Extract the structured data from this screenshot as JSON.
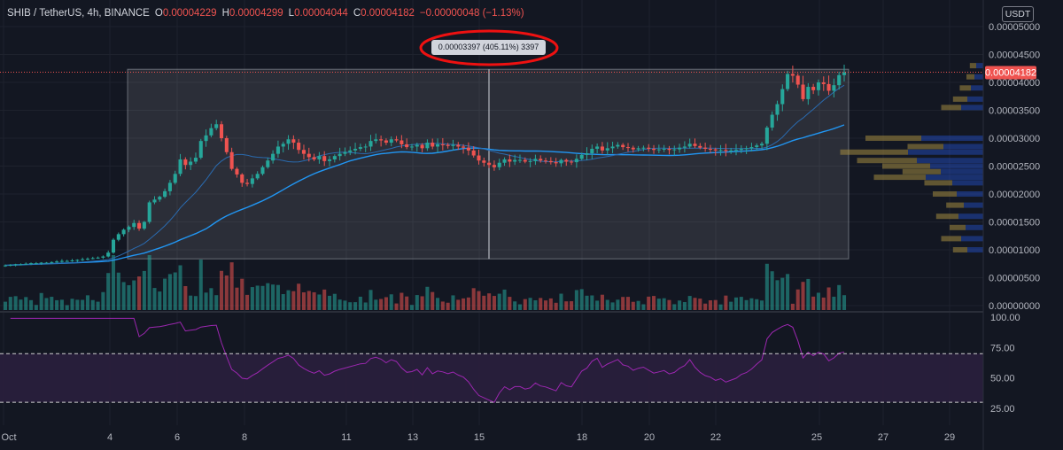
{
  "header": {
    "symbol": "SHIB / TetherUS, 4h, BINANCE",
    "o_label": "O",
    "o": "0.00004229",
    "h_label": "H",
    "h": "0.00004299",
    "l_label": "L",
    "l": "0.00004044",
    "c_label": "C",
    "c": "0.00004182",
    "change": "−0.00000048 (−1.13%)"
  },
  "currency_button": "USDT",
  "measure_label": "0.00003397 (405.11%) 3397",
  "last_price_label": "0.00004182",
  "colors": {
    "up": "#26a69a",
    "down": "#ef5350",
    "ma_fast": "#2a6bb0",
    "ma_slow": "#2196f3",
    "rsi": "#9c27b0",
    "annotation": "#ee1111"
  },
  "chart_data": {
    "type": "candlestick",
    "title": "",
    "xlabel": "",
    "ylabel": "",
    "x_ticks": [
      "Oct",
      "4",
      "6",
      "8",
      "11",
      "13",
      "15",
      "18",
      "20",
      "22",
      "25",
      "27",
      "29"
    ],
    "y_ticks": [
      "0.00005000",
      "0.00004500",
      "0.00004000",
      "0.00003500",
      "0.00003000",
      "0.00002500",
      "0.00002000",
      "0.00001500",
      "0.00001000",
      "0.00000500",
      "0.00000000"
    ],
    "ylim": [
      0,
      5e-05
    ],
    "last_price": 4.182e-05,
    "measure": {
      "from_price": 8.38e-06,
      "to_price": 4.235e-05,
      "change": "0.00003397",
      "percent": "405.11%",
      "bars": "3397"
    },
    "closes": [
      7.2e-06,
      7.3e-06,
      7.4e-06,
      7.4e-06,
      7.5e-06,
      7.6e-06,
      7.6e-06,
      7.7e-06,
      7.7e-06,
      7.8e-06,
      7.9e-06,
      8e-06,
      8e-06,
      8.1e-06,
      8.2e-06,
      8.3e-06,
      8.4e-06,
      8.5e-06,
      8.6e-06,
      8.8e-06,
      9.5e-06,
      1.18e-05,
      1.28e-05,
      1.36e-05,
      1.41e-05,
      1.48e-05,
      1.38e-05,
      1.5e-05,
      1.85e-05,
      1.9e-05,
      1.95e-05,
      2.05e-05,
      2.2e-05,
      2.36e-05,
      2.62e-05,
      2.52e-05,
      2.58e-05,
      2.65e-05,
      2.95e-05,
      3.05e-05,
      3.18e-05,
      3.25e-05,
      3e-05,
      2.75e-05,
      2.45e-05,
      2.35e-05,
      2.2e-05,
      2.18e-05,
      2.28e-05,
      2.36e-05,
      2.48e-05,
      2.6e-05,
      2.72e-05,
      2.85e-05,
      2.9e-05,
      2.98e-05,
      2.92e-05,
      2.79e-05,
      2.72e-05,
      2.66e-05,
      2.62e-05,
      2.68e-05,
      2.59e-05,
      2.62e-05,
      2.68e-05,
      2.72e-05,
      2.75e-05,
      2.78e-05,
      2.81e-05,
      2.84e-05,
      2.85e-05,
      2.95e-05,
      2.98e-05,
      2.96e-05,
      2.92e-05,
      2.98e-05,
      2.96e-05,
      2.89e-05,
      2.84e-05,
      2.85e-05,
      2.88e-05,
      2.82e-05,
      2.92e-05,
      2.85e-05,
      2.89e-05,
      2.88e-05,
      2.86e-05,
      2.88e-05,
      2.85e-05,
      2.83e-05,
      2.78e-05,
      2.69e-05,
      2.6e-05,
      2.56e-05,
      2.52e-05,
      2.48e-05,
      2.56e-05,
      2.62e-05,
      2.58e-05,
      2.61e-05,
      2.61e-05,
      2.58e-05,
      2.59e-05,
      2.63e-05,
      2.6e-05,
      2.59e-05,
      2.57e-05,
      2.55e-05,
      2.61e-05,
      2.58e-05,
      2.57e-05,
      2.63e-05,
      2.7e-05,
      2.73e-05,
      2.81e-05,
      2.85e-05,
      2.78e-05,
      2.82e-05,
      2.85e-05,
      2.88e-05,
      2.84e-05,
      2.83e-05,
      2.8e-05,
      2.82e-05,
      2.83e-05,
      2.81e-05,
      2.79e-05,
      2.8e-05,
      2.81e-05,
      2.79e-05,
      2.8e-05,
      2.83e-05,
      2.85e-05,
      2.9e-05,
      2.86e-05,
      2.83e-05,
      2.81e-05,
      2.8e-05,
      2.78e-05,
      2.79e-05,
      2.77e-05,
      2.78e-05,
      2.79e-05,
      2.81e-05,
      2.82e-05,
      2.84e-05,
      2.87e-05,
      2.9e-05,
      3.19e-05,
      3.42e-05,
      3.61e-05,
      3.88e-05,
      4.15e-05,
      4.12e-05,
      3.96e-05,
      3.7e-05,
      3.92e-05,
      3.86e-05,
      4e-05,
      3.97e-05,
      3.85e-05,
      3.95e-05,
      4.13e-05,
      4.18e-05
    ]
  }
}
